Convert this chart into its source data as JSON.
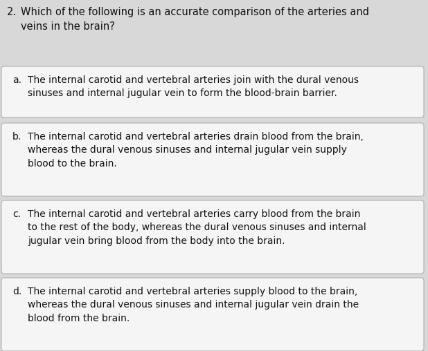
{
  "question_number": "2.",
  "question_text": "Which of the following is an accurate comparison of the arteries and\nveins in the brain?",
  "options": [
    {
      "label": "a.",
      "text": "The internal carotid and vertebral arteries join with the dural venous\nsinuses and internal jugular vein to form the blood-brain barrier."
    },
    {
      "label": "b.",
      "text": "The internal carotid and vertebral arteries drain blood from the brain,\nwhereas the dural venous sinuses and internal jugular vein supply\nblood to the brain."
    },
    {
      "label": "c.",
      "text": "The internal carotid and vertebral arteries carry blood from the brain\nto the rest of the body, whereas the dural venous sinuses and internal\njugular vein bring blood from the body into the brain."
    },
    {
      "label": "d.",
      "text": "The internal carotid and vertebral arteries supply blood to the brain,\nwhereas the dural venous sinuses and internal jugular vein drain the\nblood from the brain."
    }
  ],
  "bg_color": "#d8d8d8",
  "box_color": "#f5f5f5",
  "box_edge_color": "#b0b0b0",
  "text_color": "#111111",
  "question_fontsize": 10.5,
  "option_fontsize": 10.0,
  "fig_width": 6.18,
  "fig_height": 5.08,
  "dpi": 100
}
